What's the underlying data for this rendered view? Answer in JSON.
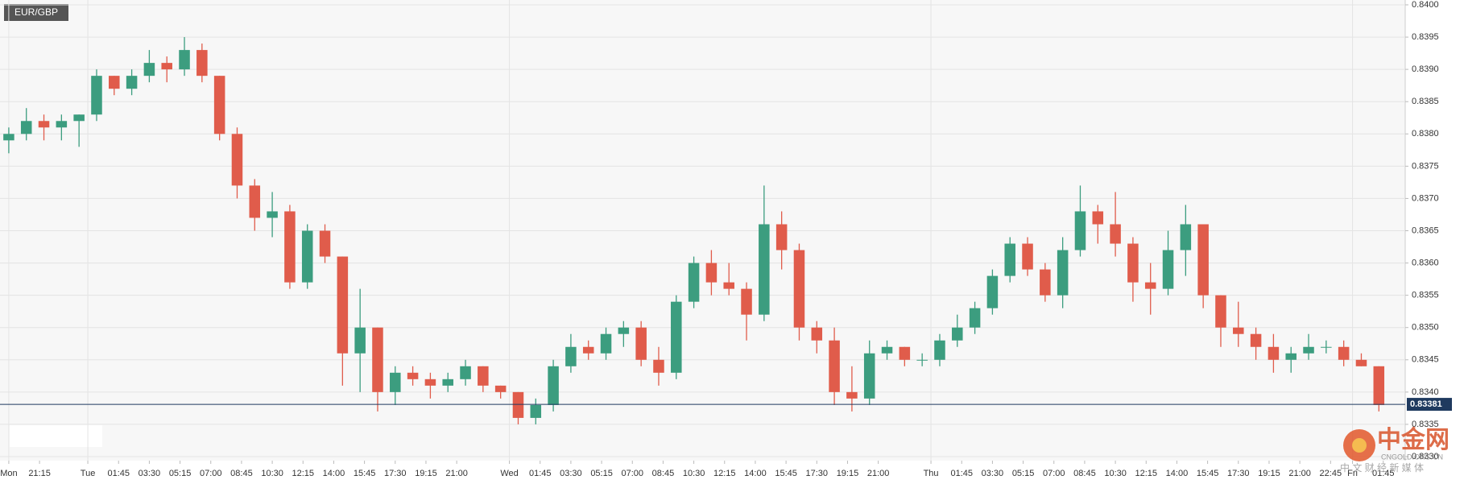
{
  "chart_data": {
    "type": "candlestick",
    "title": "EUR/GBP",
    "x": [
      2,
      6,
      10,
      14,
      18,
      22,
      26,
      30,
      34,
      38,
      42,
      46,
      50,
      54,
      58,
      62,
      66,
      70,
      74,
      78,
      82,
      86,
      90,
      94,
      98,
      102,
      106,
      110,
      114,
      118,
      122,
      126,
      130,
      134,
      138,
      142,
      146,
      150,
      154,
      158,
      162,
      166,
      170,
      174,
      178,
      182,
      186,
      190,
      194,
      198,
      202,
      206,
      210,
      214,
      218,
      222,
      226,
      230,
      234,
      238,
      242,
      246,
      250,
      254,
      258,
      262,
      266,
      270,
      274,
      278,
      282,
      286,
      290,
      294,
      298,
      302,
      306,
      310,
      314
    ],
    "open": [
      0.8379,
      0.838,
      0.8382,
      0.8381,
      0.8382,
      0.8383,
      0.8389,
      0.8387,
      0.8389,
      0.8391,
      0.839,
      0.8393,
      0.8389,
      0.838,
      0.8372,
      0.8367,
      0.8368,
      0.8357,
      0.8365,
      0.8361,
      0.8346,
      0.835,
      0.834,
      0.8343,
      0.8342,
      0.8341,
      0.8342,
      0.8344,
      0.8341,
      0.834,
      0.8336,
      0.8338,
      0.8344,
      0.8347,
      0.8346,
      0.8349,
      0.835,
      0.8345,
      0.8343,
      0.8354,
      0.836,
      0.8357,
      0.8356,
      0.8352,
      0.8366,
      0.8362,
      0.835,
      0.8348,
      0.834,
      0.8339,
      0.8346,
      0.8347,
      0.8345,
      0.8345,
      0.8348,
      0.835,
      0.8353,
      0.8358,
      0.8363,
      0.8359,
      0.8355,
      0.8362,
      0.8368,
      0.8366,
      0.8363,
      0.8357,
      0.8356,
      0.8362,
      0.8366,
      0.8355,
      0.835,
      0.8349,
      0.8347,
      0.8345,
      0.8346,
      0.8347,
      0.8347,
      0.8345,
      0.8344
    ],
    "high": [
      0.8381,
      0.8384,
      0.8383,
      0.8383,
      0.8383,
      0.839,
      0.8389,
      0.839,
      0.8393,
      0.8392,
      0.8395,
      0.8394,
      0.8389,
      0.8381,
      0.8373,
      0.8371,
      0.8369,
      0.8366,
      0.8366,
      0.8361,
      0.8356,
      0.835,
      0.8344,
      0.8344,
      0.8343,
      0.8343,
      0.8345,
      0.8344,
      0.8341,
      0.834,
      0.8339,
      0.8345,
      0.8349,
      0.8348,
      0.835,
      0.8351,
      0.8351,
      0.8347,
      0.8355,
      0.8361,
      0.8362,
      0.836,
      0.8357,
      0.8372,
      0.8368,
      0.8363,
      0.8351,
      0.835,
      0.8344,
      0.8348,
      0.8348,
      0.8347,
      0.8346,
      0.8349,
      0.8352,
      0.8354,
      0.8359,
      0.8364,
      0.8364,
      0.836,
      0.8364,
      0.8372,
      0.8369,
      0.8371,
      0.8364,
      0.836,
      0.8365,
      0.8369,
      0.8366,
      0.8355,
      0.8354,
      0.835,
      0.8349,
      0.8347,
      0.8349,
      0.8348,
      0.8348,
      0.8346,
      0.8344
    ],
    "low": [
      0.8377,
      0.8379,
      0.8379,
      0.8379,
      0.8378,
      0.8382,
      0.8386,
      0.8386,
      0.8388,
      0.8388,
      0.8389,
      0.8388,
      0.8379,
      0.837,
      0.8365,
      0.8364,
      0.8356,
      0.8356,
      0.836,
      0.8341,
      0.834,
      0.8337,
      0.8338,
      0.8341,
      0.8339,
      0.834,
      0.8341,
      0.834,
      0.8339,
      0.8335,
      0.8335,
      0.8337,
      0.8343,
      0.8345,
      0.8345,
      0.8347,
      0.8344,
      0.8341,
      0.8342,
      0.8353,
      0.8355,
      0.8355,
      0.8348,
      0.8351,
      0.8359,
      0.8348,
      0.8346,
      0.8338,
      0.8337,
      0.8338,
      0.8345,
      0.8344,
      0.8344,
      0.8344,
      0.8347,
      0.8349,
      0.8352,
      0.8357,
      0.8358,
      0.8354,
      0.8353,
      0.8361,
      0.8363,
      0.8361,
      0.8354,
      0.8352,
      0.8355,
      0.8358,
      0.8353,
      0.8347,
      0.8347,
      0.8345,
      0.8343,
      0.8343,
      0.8345,
      0.8346,
      0.8344,
      0.8344,
      0.8337
    ],
    "close": [
      0.838,
      0.8382,
      0.8381,
      0.8382,
      0.8383,
      0.8389,
      0.8387,
      0.8389,
      0.8391,
      0.839,
      0.8393,
      0.8389,
      0.838,
      0.8372,
      0.8367,
      0.8368,
      0.8357,
      0.8365,
      0.8361,
      0.8346,
      0.835,
      0.834,
      0.8343,
      0.8342,
      0.8341,
      0.8342,
      0.8344,
      0.8341,
      0.834,
      0.8336,
      0.8338,
      0.8344,
      0.8347,
      0.8346,
      0.8349,
      0.835,
      0.8345,
      0.8343,
      0.8354,
      0.836,
      0.8357,
      0.8356,
      0.8352,
      0.8366,
      0.8362,
      0.835,
      0.8348,
      0.834,
      0.8339,
      0.8346,
      0.8347,
      0.8345,
      0.8345,
      0.8348,
      0.835,
      0.8353,
      0.8358,
      0.8363,
      0.8359,
      0.8355,
      0.8362,
      0.8368,
      0.8366,
      0.8363,
      0.8357,
      0.8356,
      0.8362,
      0.8366,
      0.8355,
      0.835,
      0.8349,
      0.8347,
      0.8345,
      0.8346,
      0.8347,
      0.8347,
      0.8345,
      0.8344,
      0.8338
    ],
    "up_color": "#3c9d7f",
    "down_color": "#e05c4b",
    "xlim": [
      0,
      320
    ],
    "xticks": [
      {
        "value": 2,
        "label": "Mon"
      },
      {
        "value": 9,
        "label": "21:15"
      },
      {
        "value": 20,
        "label": "Tue"
      },
      {
        "value": 27,
        "label": "01:45"
      },
      {
        "value": 34,
        "label": "03:30"
      },
      {
        "value": 41,
        "label": "05:15"
      },
      {
        "value": 48,
        "label": "07:00"
      },
      {
        "value": 55,
        "label": "08:45"
      },
      {
        "value": 62,
        "label": "10:30"
      },
      {
        "value": 69,
        "label": "12:15"
      },
      {
        "value": 76,
        "label": "14:00"
      },
      {
        "value": 83,
        "label": "15:45"
      },
      {
        "value": 90,
        "label": "17:30"
      },
      {
        "value": 97,
        "label": "19:15"
      },
      {
        "value": 104,
        "label": "21:00"
      },
      {
        "value": 116,
        "label": "Wed"
      },
      {
        "value": 123,
        "label": "01:45"
      },
      {
        "value": 130,
        "label": "03:30"
      },
      {
        "value": 137,
        "label": "05:15"
      },
      {
        "value": 144,
        "label": "07:00"
      },
      {
        "value": 151,
        "label": "08:45"
      },
      {
        "value": 158,
        "label": "10:30"
      },
      {
        "value": 165,
        "label": "12:15"
      },
      {
        "value": 172,
        "label": "14:00"
      },
      {
        "value": 179,
        "label": "15:45"
      },
      {
        "value": 186,
        "label": "17:30"
      },
      {
        "value": 193,
        "label": "19:15"
      },
      {
        "value": 200,
        "label": "21:00"
      },
      {
        "value": 212,
        "label": "Thu"
      },
      {
        "value": 219,
        "label": "01:45"
      },
      {
        "value": 226,
        "label": "03:30"
      },
      {
        "value": 233,
        "label": "05:15"
      },
      {
        "value": 240,
        "label": "07:00"
      },
      {
        "value": 247,
        "label": "08:45"
      },
      {
        "value": 254,
        "label": "10:30"
      },
      {
        "value": 261,
        "label": "12:15"
      },
      {
        "value": 268,
        "label": "14:00"
      },
      {
        "value": 275,
        "label": "15:45"
      },
      {
        "value": 282,
        "label": "17:30"
      },
      {
        "value": 289,
        "label": "19:15"
      },
      {
        "value": 296,
        "label": "21:00"
      },
      {
        "value": 303,
        "label": "22:45"
      },
      {
        "value": 308,
        "label": "Fri"
      },
      {
        "value": 315,
        "label": "01:45"
      }
    ],
    "ylim": [
      0.833,
      0.84
    ],
    "yticks": [
      {
        "value": 0.833,
        "label": "0.8330"
      },
      0.8335,
      {
        "value": 0.834,
        "label": "0.8340"
      },
      0.8345,
      {
        "value": 0.835,
        "label": "0.8350"
      },
      0.8355,
      {
        "value": 0.836,
        "label": "0.8360"
      },
      0.8365,
      {
        "value": 0.837,
        "label": "0.8370"
      },
      0.8375,
      {
        "value": 0.838,
        "label": "0.8380"
      },
      0.8385,
      {
        "value": 0.839,
        "label": "0.8390"
      },
      0.8395,
      {
        "value": 0.84,
        "label": "0.8400"
      }
    ],
    "grid": true,
    "last_price": {
      "value": 0.83381,
      "label": "0.83381"
    },
    "watermark": {
      "name": "中金网",
      "domain": "CNGOLD.ORG.CN",
      "slogan": "中 文 财 经 新 媒 体"
    }
  }
}
